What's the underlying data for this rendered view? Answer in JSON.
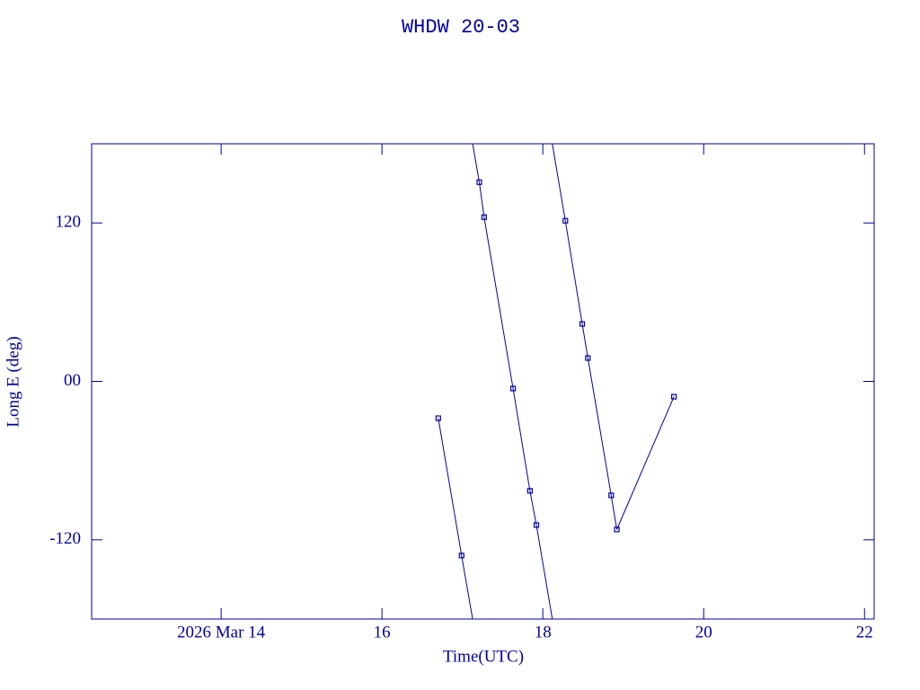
{
  "chart_data": {
    "type": "line",
    "title": "WHDW 20-03",
    "x_label": "Time(UTC)",
    "y_label": "Long E (deg)",
    "series": [
      {
        "color": "#0000a0",
        "x": [
          16.7,
          16.99,
          17.21,
          17.27,
          17.63,
          17.84,
          17.92,
          18.28,
          18.49,
          18.56,
          18.85,
          18.92,
          19.63
        ],
        "values": [
          -27.9,
          -131.9,
          150.9,
          124.4,
          -5.4,
          -82.9,
          -108.8,
          121.7,
          43.5,
          17.7,
          -86.3,
          -112.2,
          -11.6
        ]
      }
    ],
    "xlim": [
      12.39,
      22.12
    ],
    "xticks": [
      {
        "value": 14,
        "label": "2026 Mar 14"
      },
      16,
      18,
      20,
      22
    ],
    "ylim": [
      -180,
      180
    ],
    "yticks": [
      -120,
      {
        "value": 0,
        "label": "00"
      },
      120
    ],
    "wrap_period": 360
  }
}
